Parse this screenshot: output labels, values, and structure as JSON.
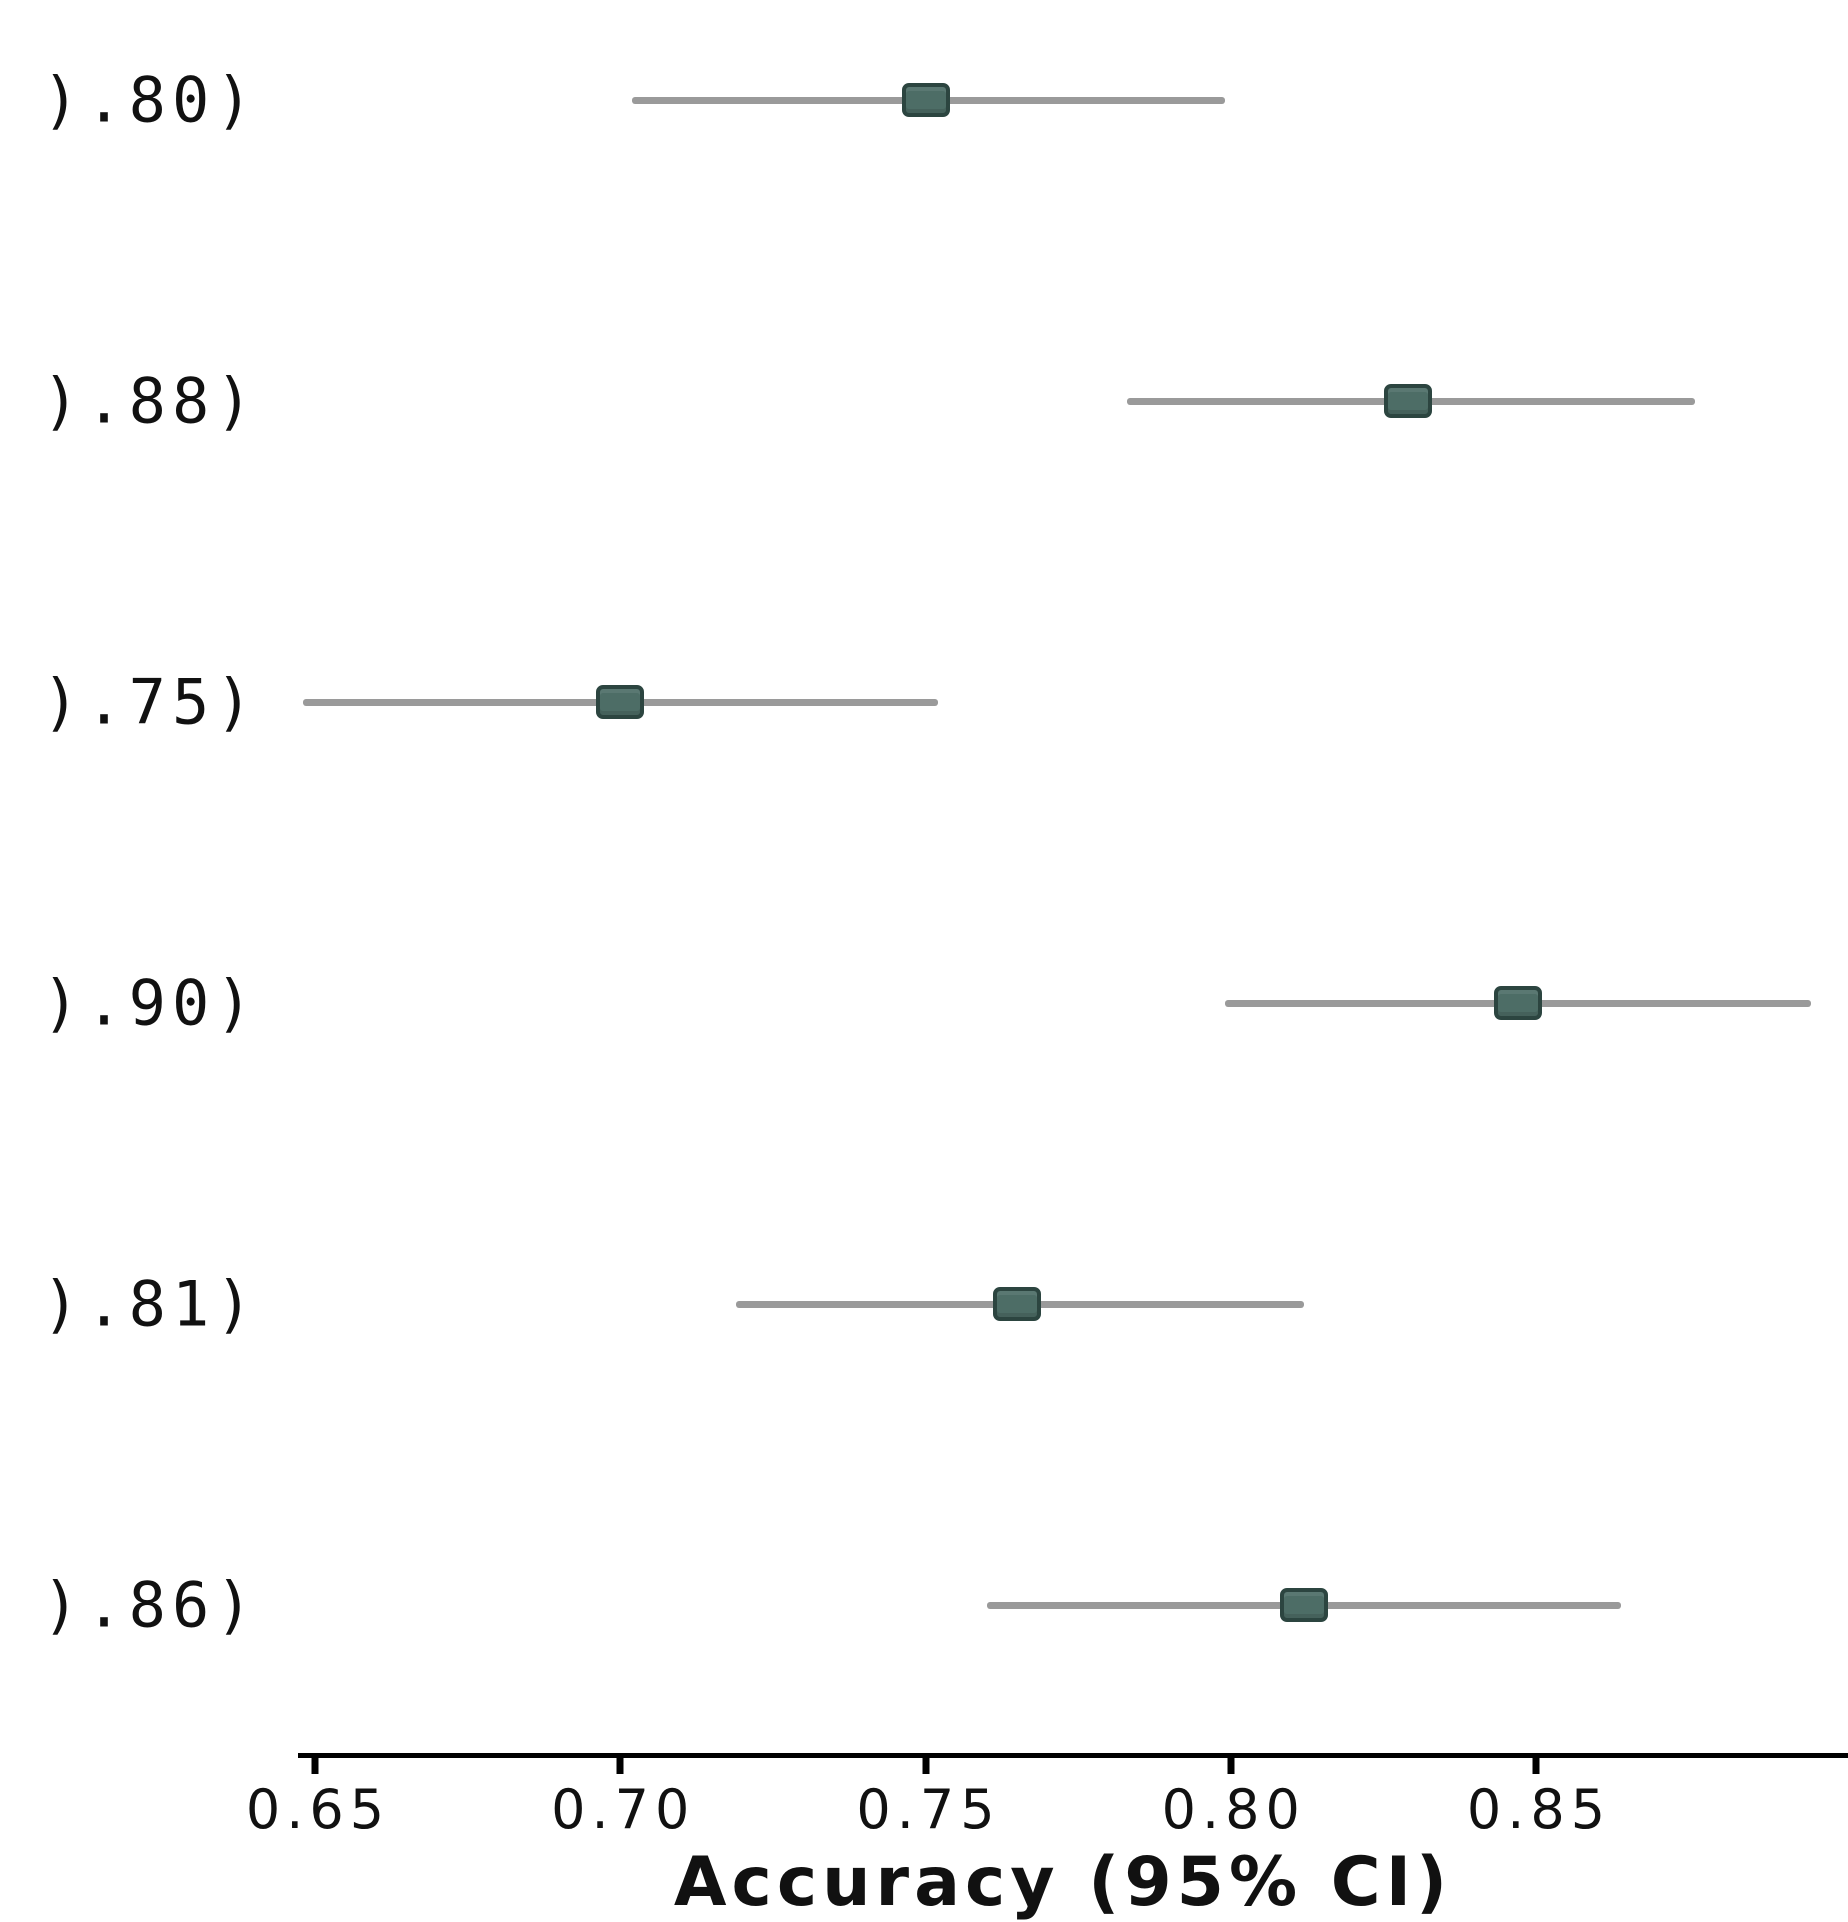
{
  "figure": {
    "xlabel": "Accuracy (95% CI)"
  },
  "chart_data": {
    "type": "scatter",
    "subtype": "horizontal-error-bar forest plot",
    "title": "",
    "xlabel": "Accuracy (95% CI)",
    "ylabel": "",
    "x_ticks": [
      "0.65",
      "0.70",
      "0.75",
      "0.80",
      "0.85"
    ],
    "xlim": [
      0.648,
      0.899
    ],
    "grid": false,
    "legend": "none",
    "series": [
      {
        "name": "Accuracy (95% CI)",
        "points": [
          {
            "row_label": ").80)",
            "value": 0.75,
            "ci_low": 0.702,
            "ci_high": 0.799
          },
          {
            "row_label": ").88)",
            "value": 0.829,
            "ci_low": 0.783,
            "ci_high": 0.876
          },
          {
            "row_label": ").75)",
            "value": 0.7,
            "ci_low": 0.648,
            "ci_high": 0.752
          },
          {
            "row_label": ").90)",
            "value": 0.847,
            "ci_low": 0.799,
            "ci_high": 0.895
          },
          {
            "row_label": ").81)",
            "value": 0.765,
            "ci_low": 0.719,
            "ci_high": 0.812
          },
          {
            "row_label": ").86)",
            "value": 0.812,
            "ci_low": 0.76,
            "ci_high": 0.864
          }
        ]
      }
    ],
    "colors": {
      "marker_fill": "#4d6d66",
      "marker_border": "#2c4540",
      "ci_line": "#9a9a9a",
      "axis": "#000000",
      "text": "#111111"
    }
  }
}
